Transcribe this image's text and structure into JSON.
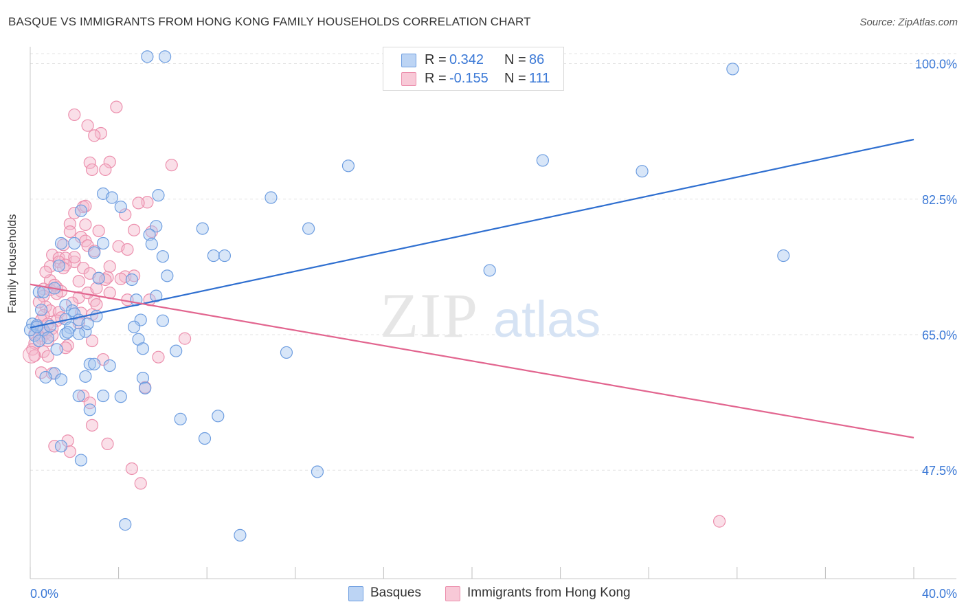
{
  "header": {
    "title": "BASQUE VS IMMIGRANTS FROM HONG KONG FAMILY HOUSEHOLDS CORRELATION CHART",
    "source": "Source: ZipAtlas.com"
  },
  "watermark": {
    "zip": "ZIP",
    "atlas": "atlas"
  },
  "legend": {
    "r_label": "R =",
    "n_label": "N =",
    "rows": [
      {
        "r": "0.342",
        "n": "86"
      },
      {
        "r": "-0.155",
        "n": "111"
      }
    ]
  },
  "colors": {
    "blue_fill": "#a9c8f0",
    "blue_stroke": "#6d9de0",
    "blue_line": "#2f6fd0",
    "pink_fill": "#f5b8cb",
    "pink_stroke": "#ec8fad",
    "pink_line": "#e2658f",
    "tick_label": "#3a78d6",
    "grid": "#e3e3e3"
  },
  "chart_data": {
    "type": "scatter",
    "ylabel": "Family Households",
    "xlim": [
      0,
      40
    ],
    "ylim": [
      33.5,
      102
    ],
    "x_tick_labels": [
      "0.0%",
      "40.0%"
    ],
    "y_ticks": [
      47.5,
      65.0,
      82.5,
      100.0
    ],
    "y_tick_labels": [
      "47.5%",
      "65.0%",
      "82.5%",
      "100.0%"
    ],
    "grid": "horizontal dashed",
    "legend_placement": "top-center and bottom",
    "series": [
      {
        "name": "Basques",
        "r": 0.342,
        "n": 86,
        "trend": [
          [
            0,
            65.9
          ],
          [
            40,
            90.2
          ]
        ],
        "points": [
          [
            5.3,
            100.9
          ],
          [
            6.1,
            100.9
          ],
          [
            31.8,
            99.3
          ],
          [
            14.4,
            86.8
          ],
          [
            23.2,
            87.5
          ],
          [
            27.7,
            86.1
          ],
          [
            3.3,
            83.2
          ],
          [
            5.8,
            83.0
          ],
          [
            10.9,
            82.7
          ],
          [
            3.7,
            82.7
          ],
          [
            4.1,
            81.5
          ],
          [
            2.3,
            81.0
          ],
          [
            5.7,
            79.0
          ],
          [
            7.8,
            78.7
          ],
          [
            12.6,
            78.7
          ],
          [
            5.4,
            77.9
          ],
          [
            1.4,
            76.8
          ],
          [
            2.0,
            76.8
          ],
          [
            3.3,
            76.8
          ],
          [
            5.5,
            76.7
          ],
          [
            2.9,
            75.6
          ],
          [
            6.0,
            75.1
          ],
          [
            8.3,
            75.2
          ],
          [
            8.8,
            75.2
          ],
          [
            34.1,
            75.2
          ],
          [
            1.3,
            73.9
          ],
          [
            20.8,
            73.3
          ],
          [
            6.2,
            72.6
          ],
          [
            3.1,
            72.3
          ],
          [
            4.6,
            72.1
          ],
          [
            1.1,
            71.0
          ],
          [
            0.4,
            70.5
          ],
          [
            0.6,
            70.5
          ],
          [
            5.7,
            70.0
          ],
          [
            4.8,
            69.5
          ],
          [
            1.6,
            68.8
          ],
          [
            0.5,
            68.2
          ],
          [
            1.9,
            68.1
          ],
          [
            2.0,
            67.7
          ],
          [
            3.0,
            67.4
          ],
          [
            1.6,
            67.0
          ],
          [
            2.2,
            66.9
          ],
          [
            5.0,
            66.9
          ],
          [
            6.0,
            66.8
          ],
          [
            0.1,
            66.4
          ],
          [
            0.3,
            66.2
          ],
          [
            4.7,
            66.0
          ],
          [
            1.8,
            65.9
          ],
          [
            0.6,
            65.6
          ],
          [
            2.5,
            65.4
          ],
          [
            1.6,
            65.1
          ],
          [
            2.2,
            65.1
          ],
          [
            0.2,
            64.9
          ],
          [
            0.8,
            64.6
          ],
          [
            4.9,
            64.4
          ],
          [
            0.4,
            64.2
          ],
          [
            5.1,
            63.2
          ],
          [
            1.2,
            63.1
          ],
          [
            6.6,
            62.9
          ],
          [
            11.6,
            62.7
          ],
          [
            2.7,
            61.2
          ],
          [
            2.9,
            61.2
          ],
          [
            3.6,
            61.0
          ],
          [
            1.1,
            60.0
          ],
          [
            0.7,
            59.5
          ],
          [
            1.4,
            59.2
          ],
          [
            2.5,
            59.6
          ],
          [
            5.1,
            59.4
          ],
          [
            5.2,
            58.1
          ],
          [
            2.2,
            57.1
          ],
          [
            3.3,
            57.1
          ],
          [
            4.1,
            57.0
          ],
          [
            2.7,
            55.3
          ],
          [
            8.5,
            54.5
          ],
          [
            6.8,
            54.1
          ],
          [
            7.9,
            51.6
          ],
          [
            1.4,
            50.6
          ],
          [
            2.3,
            48.8
          ],
          [
            13.0,
            47.3
          ],
          [
            4.3,
            40.5
          ],
          [
            9.5,
            39.1
          ],
          [
            0.0,
            65.6
          ],
          [
            0.3,
            66.0
          ],
          [
            1.7,
            65.3
          ],
          [
            2.6,
            66.4
          ],
          [
            0.9,
            66.1
          ]
        ]
      },
      {
        "name": "Immigrants from Hong Kong",
        "r": -0.155,
        "n": 111,
        "trend": [
          [
            0,
            71.5
          ],
          [
            40,
            51.7
          ]
        ],
        "points": [
          [
            3.9,
            94.4
          ],
          [
            2.0,
            93.4
          ],
          [
            2.6,
            92.0
          ],
          [
            3.2,
            91.0
          ],
          [
            2.9,
            90.7
          ],
          [
            2.7,
            87.2
          ],
          [
            3.6,
            87.3
          ],
          [
            6.4,
            86.9
          ],
          [
            2.8,
            86.3
          ],
          [
            3.4,
            86.3
          ],
          [
            5.3,
            82.1
          ],
          [
            4.9,
            82.0
          ],
          [
            2.4,
            81.5
          ],
          [
            2.5,
            81.6
          ],
          [
            4.3,
            80.5
          ],
          [
            2.0,
            80.7
          ],
          [
            1.8,
            79.3
          ],
          [
            2.5,
            79.2
          ],
          [
            1.8,
            78.3
          ],
          [
            3.1,
            78.4
          ],
          [
            4.7,
            78.5
          ],
          [
            5.5,
            78.3
          ],
          [
            2.3,
            77.6
          ],
          [
            2.5,
            77.1
          ],
          [
            1.5,
            76.6
          ],
          [
            2.6,
            76.5
          ],
          [
            4.0,
            76.4
          ],
          [
            2.9,
            75.8
          ],
          [
            1.0,
            75.3
          ],
          [
            1.3,
            74.9
          ],
          [
            1.6,
            74.9
          ],
          [
            1.3,
            74.4
          ],
          [
            2.0,
            74.4
          ],
          [
            1.6,
            74.0
          ],
          [
            0.9,
            73.8
          ],
          [
            3.6,
            73.8
          ],
          [
            2.4,
            73.6
          ],
          [
            2.7,
            72.9
          ],
          [
            3.1,
            72.3
          ],
          [
            3.5,
            72.4
          ],
          [
            4.3,
            72.5
          ],
          [
            4.7,
            72.6
          ],
          [
            3.4,
            72.1
          ],
          [
            4.1,
            72.2
          ],
          [
            0.9,
            72.0
          ],
          [
            2.2,
            71.9
          ],
          [
            1.2,
            71.1
          ],
          [
            0.6,
            70.9
          ],
          [
            0.9,
            70.8
          ],
          [
            1.4,
            70.6
          ],
          [
            1.2,
            70.3
          ],
          [
            3.6,
            70.4
          ],
          [
            0.6,
            70.0
          ],
          [
            2.2,
            69.8
          ],
          [
            2.9,
            69.4
          ],
          [
            4.4,
            69.5
          ],
          [
            5.4,
            69.5
          ],
          [
            3.0,
            68.9
          ],
          [
            0.7,
            68.6
          ],
          [
            0.9,
            68.1
          ],
          [
            1.3,
            67.9
          ],
          [
            0.6,
            67.5
          ],
          [
            2.3,
            67.8
          ],
          [
            2.8,
            67.6
          ],
          [
            1.4,
            67.2
          ],
          [
            0.5,
            66.9
          ],
          [
            1.2,
            66.8
          ],
          [
            2.2,
            66.5
          ],
          [
            0.8,
            66.4
          ],
          [
            0.3,
            66.0
          ],
          [
            1.0,
            65.8
          ],
          [
            0.5,
            65.6
          ],
          [
            0.7,
            65.2
          ],
          [
            0.2,
            65.1
          ],
          [
            1.0,
            64.9
          ],
          [
            0.4,
            64.8
          ],
          [
            0.5,
            64.5
          ],
          [
            0.8,
            64.2
          ],
          [
            2.8,
            64.2
          ],
          [
            0.2,
            63.9
          ],
          [
            1.7,
            63.6
          ],
          [
            1.6,
            63.3
          ],
          [
            0.1,
            63.1
          ],
          [
            0.6,
            62.8
          ],
          [
            5.8,
            62.1
          ],
          [
            0.2,
            62.3
          ],
          [
            0.8,
            62.2
          ],
          [
            3.3,
            61.8
          ],
          [
            0.5,
            60.1
          ],
          [
            1.0,
            60.0
          ],
          [
            7.0,
            64.5
          ],
          [
            5.2,
            58.2
          ],
          [
            2.4,
            57.1
          ],
          [
            2.7,
            56.2
          ],
          [
            2.8,
            53.3
          ],
          [
            1.7,
            51.3
          ],
          [
            3.5,
            50.9
          ],
          [
            1.1,
            50.6
          ],
          [
            1.8,
            49.9
          ],
          [
            4.6,
            47.7
          ],
          [
            5.0,
            45.8
          ],
          [
            31.2,
            40.9
          ],
          [
            1.5,
            73.6
          ],
          [
            2.0,
            75.0
          ],
          [
            1.1,
            71.4
          ],
          [
            0.4,
            69.2
          ],
          [
            2.6,
            70.4
          ],
          [
            3.0,
            71.0
          ],
          [
            1.9,
            69.1
          ],
          [
            0.7,
            73.1
          ],
          [
            4.4,
            76.0
          ]
        ]
      }
    ]
  },
  "bottom_legend": [
    {
      "label": "Basques"
    },
    {
      "label": "Immigrants from Hong Kong"
    }
  ]
}
